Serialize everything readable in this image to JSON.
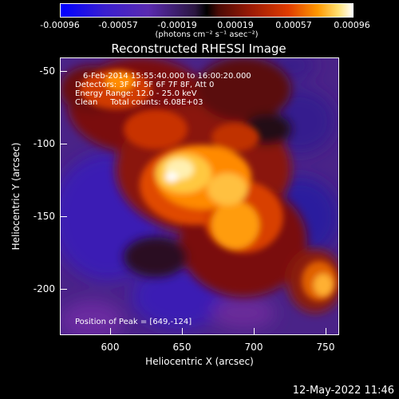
{
  "colorbar": {
    "ticks": [
      "-0.00096",
      "-0.00057",
      "-0.00019",
      "0.00019",
      "0.00057",
      "0.00096"
    ],
    "units": "(photons cm⁻² s⁻¹ asec⁻²)",
    "range": [
      -0.00096,
      0.00096
    ]
  },
  "title": "Reconstructed RHESSI Image",
  "info": {
    "line1": "6-Feb-2014 15:55:40.000 to 16:00:20.000",
    "line2": "Detectors: 3F 4F 5F 6F 7F 8F, Att 0",
    "line3": "Energy Range: 12.0 - 25.0 keV",
    "line4": "Clean     Total counts: 6.08E+03"
  },
  "peak": "Position of Peak = [649,-124]",
  "x_axis": {
    "title": "Heliocentric X (arcsec)",
    "ticks": [
      "600",
      "650",
      "700",
      "750"
    ],
    "range": [
      565,
      760
    ]
  },
  "y_axis": {
    "title": "Heliocentric Y (arcsec)",
    "ticks": [
      "-50",
      "-100",
      "-150",
      "-200"
    ],
    "range": [
      -235,
      -43
    ]
  },
  "timestamp": "12-May-2022 11:46"
}
